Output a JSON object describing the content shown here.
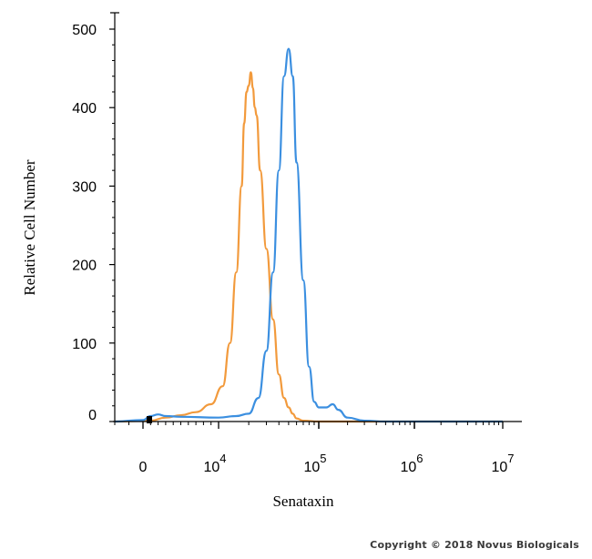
{
  "chart_data": {
    "type": "line",
    "title": "",
    "xlabel": "Senataxin",
    "ylabel": "Relative Cell Number",
    "x_scale": "biexponential",
    "x_tick_labels": [
      {
        "base": "0",
        "exp": ""
      },
      {
        "base": "10",
        "exp": "4"
      },
      {
        "base": "10",
        "exp": "5"
      },
      {
        "base": "10",
        "exp": "6"
      },
      {
        "base": "10",
        "exp": "7"
      }
    ],
    "y_ticks": [
      0,
      100,
      200,
      300,
      400,
      500
    ],
    "ylim": [
      0,
      500
    ],
    "grid": false,
    "legend": "none",
    "series": [
      {
        "color": "#f29a3c",
        "points": [
          [
            -2000,
            0
          ],
          [
            1000,
            1
          ],
          [
            3000,
            5
          ],
          [
            5000,
            8
          ],
          [
            7000,
            12
          ],
          [
            9000,
            22
          ],
          [
            11000,
            45
          ],
          [
            13000,
            100
          ],
          [
            15000,
            190
          ],
          [
            17000,
            300
          ],
          [
            18000,
            380
          ],
          [
            19000,
            420
          ],
          [
            20000,
            428
          ],
          [
            21000,
            445
          ],
          [
            22000,
            425
          ],
          [
            23000,
            400
          ],
          [
            24000,
            390
          ],
          [
            26000,
            320
          ],
          [
            30000,
            220
          ],
          [
            35000,
            130
          ],
          [
            40000,
            60
          ],
          [
            45000,
            30
          ],
          [
            50000,
            18
          ],
          [
            55000,
            10
          ],
          [
            60000,
            4
          ],
          [
            70000,
            1
          ],
          [
            100000,
            0
          ],
          [
            10000000,
            0
          ]
        ]
      },
      {
        "color": "#3b8fe0",
        "points": [
          [
            -2000,
            0
          ],
          [
            0,
            2
          ],
          [
            1000,
            7
          ],
          [
            2000,
            9
          ],
          [
            3000,
            7
          ],
          [
            5000,
            6
          ],
          [
            10000,
            5
          ],
          [
            15000,
            7
          ],
          [
            20000,
            10
          ],
          [
            25000,
            30
          ],
          [
            30000,
            90
          ],
          [
            35000,
            190
          ],
          [
            40000,
            320
          ],
          [
            45000,
            440
          ],
          [
            50000,
            475
          ],
          [
            55000,
            440
          ],
          [
            60000,
            330
          ],
          [
            70000,
            180
          ],
          [
            80000,
            70
          ],
          [
            90000,
            25
          ],
          [
            100000,
            18
          ],
          [
            120000,
            18
          ],
          [
            140000,
            22
          ],
          [
            160000,
            15
          ],
          [
            200000,
            5
          ],
          [
            300000,
            1
          ],
          [
            500000,
            0
          ],
          [
            10000000,
            0
          ]
        ]
      }
    ]
  },
  "copyright": "Copyright © 2018 Novus Biologicals"
}
